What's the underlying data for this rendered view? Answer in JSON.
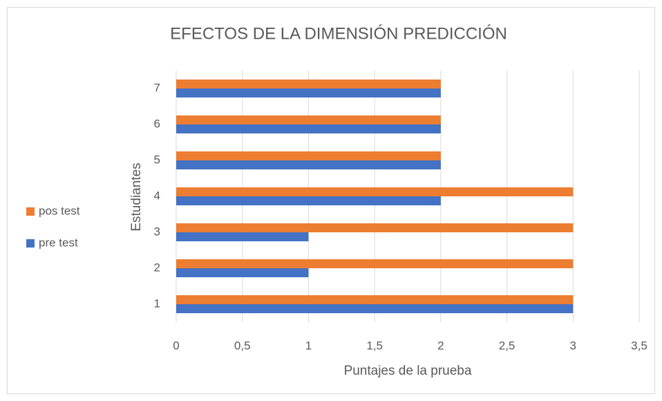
{
  "chart_data": {
    "type": "hbar",
    "title": "EFECTOS DE LA DIMENSIÓN PREDICCIÓN",
    "xlabel": "Puntajes de la prueba",
    "ylabel": "Estudiantes",
    "categories": [
      "1",
      "2",
      "3",
      "4",
      "5",
      "6",
      "7"
    ],
    "series": [
      {
        "name": "pre test",
        "color": "#4472c4",
        "values": [
          3,
          1,
          1,
          2,
          2,
          2,
          2
        ]
      },
      {
        "name": "pos test",
        "color": "#ed7d31",
        "values": [
          3,
          3,
          3,
          3,
          2,
          2,
          2
        ]
      }
    ],
    "xlim": [
      0,
      3.5
    ],
    "xticks": [
      0,
      {
        "value": 0.5,
        "label": "0,5"
      },
      1,
      {
        "value": 1.5,
        "label": "1,5"
      },
      2,
      {
        "value": 2.5,
        "label": "2,5"
      },
      3,
      {
        "value": 3.5,
        "label": "3,5"
      }
    ],
    "grid": true,
    "legend": "left"
  }
}
